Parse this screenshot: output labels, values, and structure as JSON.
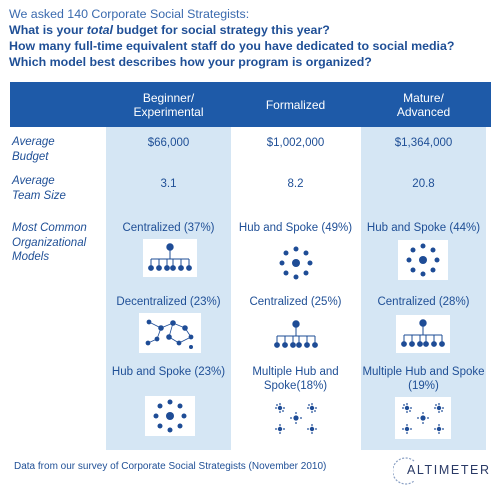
{
  "intro": {
    "lead": "We asked 140 Corporate Social Strategists:",
    "q1_pre": "What is your ",
    "q1_em": "total",
    "q1_post": " budget for social strategy this year?",
    "q2": "How many full-time equivalent staff do you have dedicated to social media?",
    "q3": "Which model best describes how your program is organized?"
  },
  "columns": [
    {
      "line1": "Beginner/",
      "line2": "Experimental"
    },
    {
      "line1": "Formalized",
      "line2": ""
    },
    {
      "line1": "Mature/",
      "line2": "Advanced"
    }
  ],
  "rows": {
    "budget": {
      "label1": "Average",
      "label2": "Budget",
      "values": [
        "$66,000",
        "$1,002,000",
        "$1,364,000"
      ]
    },
    "team": {
      "label1": "Average",
      "label2": "Team Size",
      "values": [
        "3.1",
        "8.2",
        "20.8"
      ]
    },
    "models": {
      "label1": "Most Common",
      "label2": "Organizational",
      "label3": "Models"
    }
  },
  "models": [
    [
      {
        "line1": "Centralized (37%)",
        "line2": "",
        "icon": "centralized-icon"
      },
      {
        "line1": "Decentralized (23%)",
        "line2": "",
        "icon": "decentralized-icon"
      },
      {
        "line1": "Hub and Spoke (23%)",
        "line2": "",
        "icon": "hub-and-spoke-icon"
      }
    ],
    [
      {
        "line1": "Hub and Spoke (49%)",
        "line2": "",
        "icon": "hub-and-spoke-icon"
      },
      {
        "line1": "Centralized (25%)",
        "line2": "",
        "icon": "centralized-icon"
      },
      {
        "line1": "Multiple Hub and",
        "line2": "Spoke(18%)",
        "icon": "multiple-hub-and-spoke-icon"
      }
    ],
    [
      {
        "line1": "Hub and Spoke (44%)",
        "line2": "",
        "icon": "hub-and-spoke-icon"
      },
      {
        "line1": "Centralized (28%)",
        "line2": "",
        "icon": "centralized-icon"
      },
      {
        "line1": "Multiple Hub and Spoke",
        "line2": "(19%)",
        "icon": "multiple-hub-and-spoke-icon"
      }
    ]
  ],
  "footer": "Data from our survey of Corporate Social Strategists (November 2010)",
  "logo": "ALTIMETER",
  "colors": {
    "header": "#1e5aa8",
    "column_shade": "#d5e6f4",
    "text": "#1f4f96",
    "icon": "#1e4c96"
  }
}
